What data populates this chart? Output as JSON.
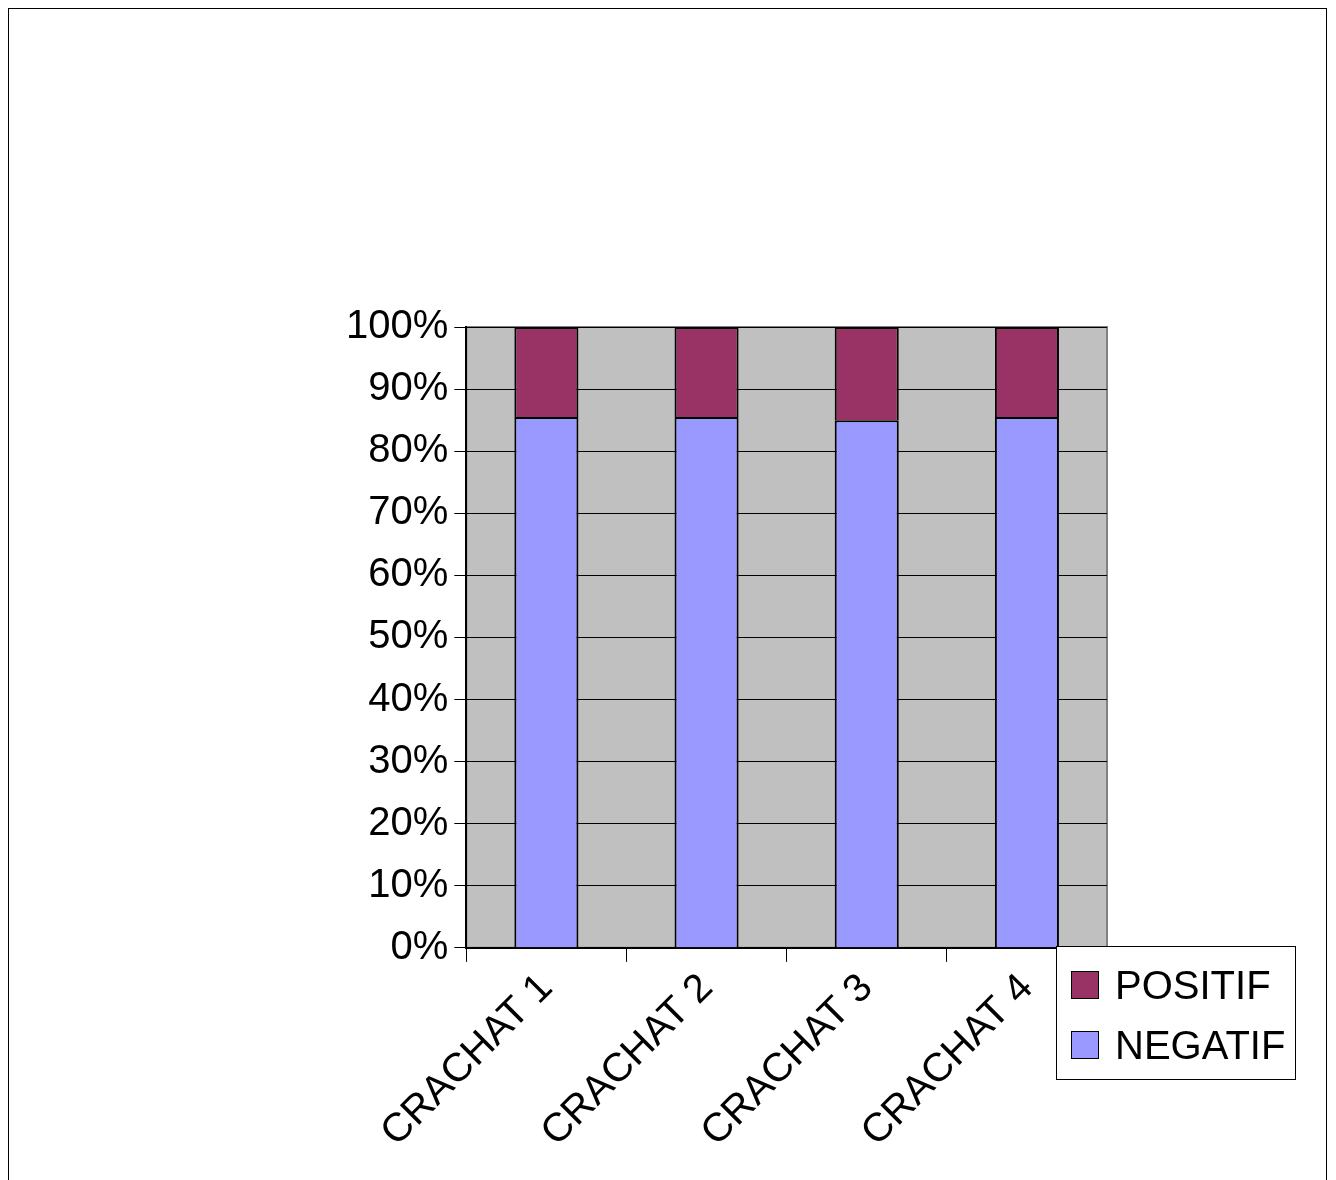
{
  "chart_data": {
    "type": "bar",
    "stacked": true,
    "categories": [
      "CRACHAT 1",
      "CRACHAT 2",
      "CRACHAT 3",
      "CRACHAT 4"
    ],
    "series": [
      {
        "name": "NEGATIF",
        "color": "#9999ff",
        "values": [
          85.5,
          85.5,
          85,
          85.5
        ]
      },
      {
        "name": "POSITIF",
        "color": "#993366",
        "values": [
          14.5,
          14.5,
          15,
          14.5
        ]
      }
    ],
    "ylim": [
      0,
      100
    ],
    "yticks": [
      {
        "value": 0,
        "label": "0%"
      },
      {
        "value": 10,
        "label": "10%"
      },
      {
        "value": 20,
        "label": "20%"
      },
      {
        "value": 30,
        "label": "30%"
      },
      {
        "value": 40,
        "label": "40%"
      },
      {
        "value": 50,
        "label": "50%"
      },
      {
        "value": 60,
        "label": "60%"
      },
      {
        "value": 70,
        "label": "70%"
      },
      {
        "value": 80,
        "label": "80%"
      },
      {
        "value": 90,
        "label": "90%"
      },
      {
        "value": 100,
        "label": "100%"
      }
    ],
    "grid": "y",
    "legend": "bottom right"
  }
}
